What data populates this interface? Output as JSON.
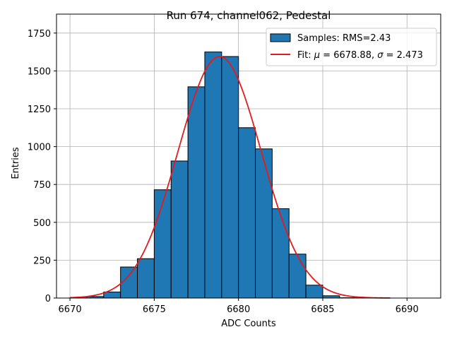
{
  "chart_data": {
    "type": "bar",
    "title": "Run 674, channel062, Pedestal",
    "xlabel": "ADC Counts",
    "ylabel": "Entries",
    "xlim": [
      6669.2,
      6692.0
    ],
    "ylim": [
      0,
      1875
    ],
    "xticks": [
      6670,
      6675,
      6680,
      6685,
      6690
    ],
    "yticks": [
      0,
      250,
      500,
      750,
      1000,
      1250,
      1500,
      1750
    ],
    "grid": true,
    "legend_position": "top-right",
    "colors": {
      "bar_fill": "#1f77b4",
      "bar_edge": "#000000",
      "fit_line": "#e41a1c",
      "grid": "#b0b0b0"
    },
    "histogram": {
      "name": "Samples: RMS=2.43",
      "bins": [
        6670,
        6671,
        6672,
        6673,
        6674,
        6675,
        6676,
        6677,
        6678,
        6679,
        6680,
        6681,
        6682,
        6683,
        6684,
        6685,
        6686,
        6687,
        6688,
        6689,
        6690,
        6691
      ],
      "counts": [
        2,
        10,
        40,
        205,
        260,
        715,
        905,
        1395,
        1625,
        1595,
        1125,
        985,
        590,
        290,
        85,
        15,
        2,
        0,
        0,
        0,
        0
      ]
    },
    "fit": {
      "name_prefix": "Fit: ",
      "mu_symbol": "μ",
      "mu_value": " = 6678.88, ",
      "sigma_symbol": "σ",
      "sigma_value": " = 2.473",
      "mu": 6678.88,
      "sigma": 2.473,
      "amplitude": 1595,
      "x_range": [
        6670,
        6689
      ]
    }
  }
}
